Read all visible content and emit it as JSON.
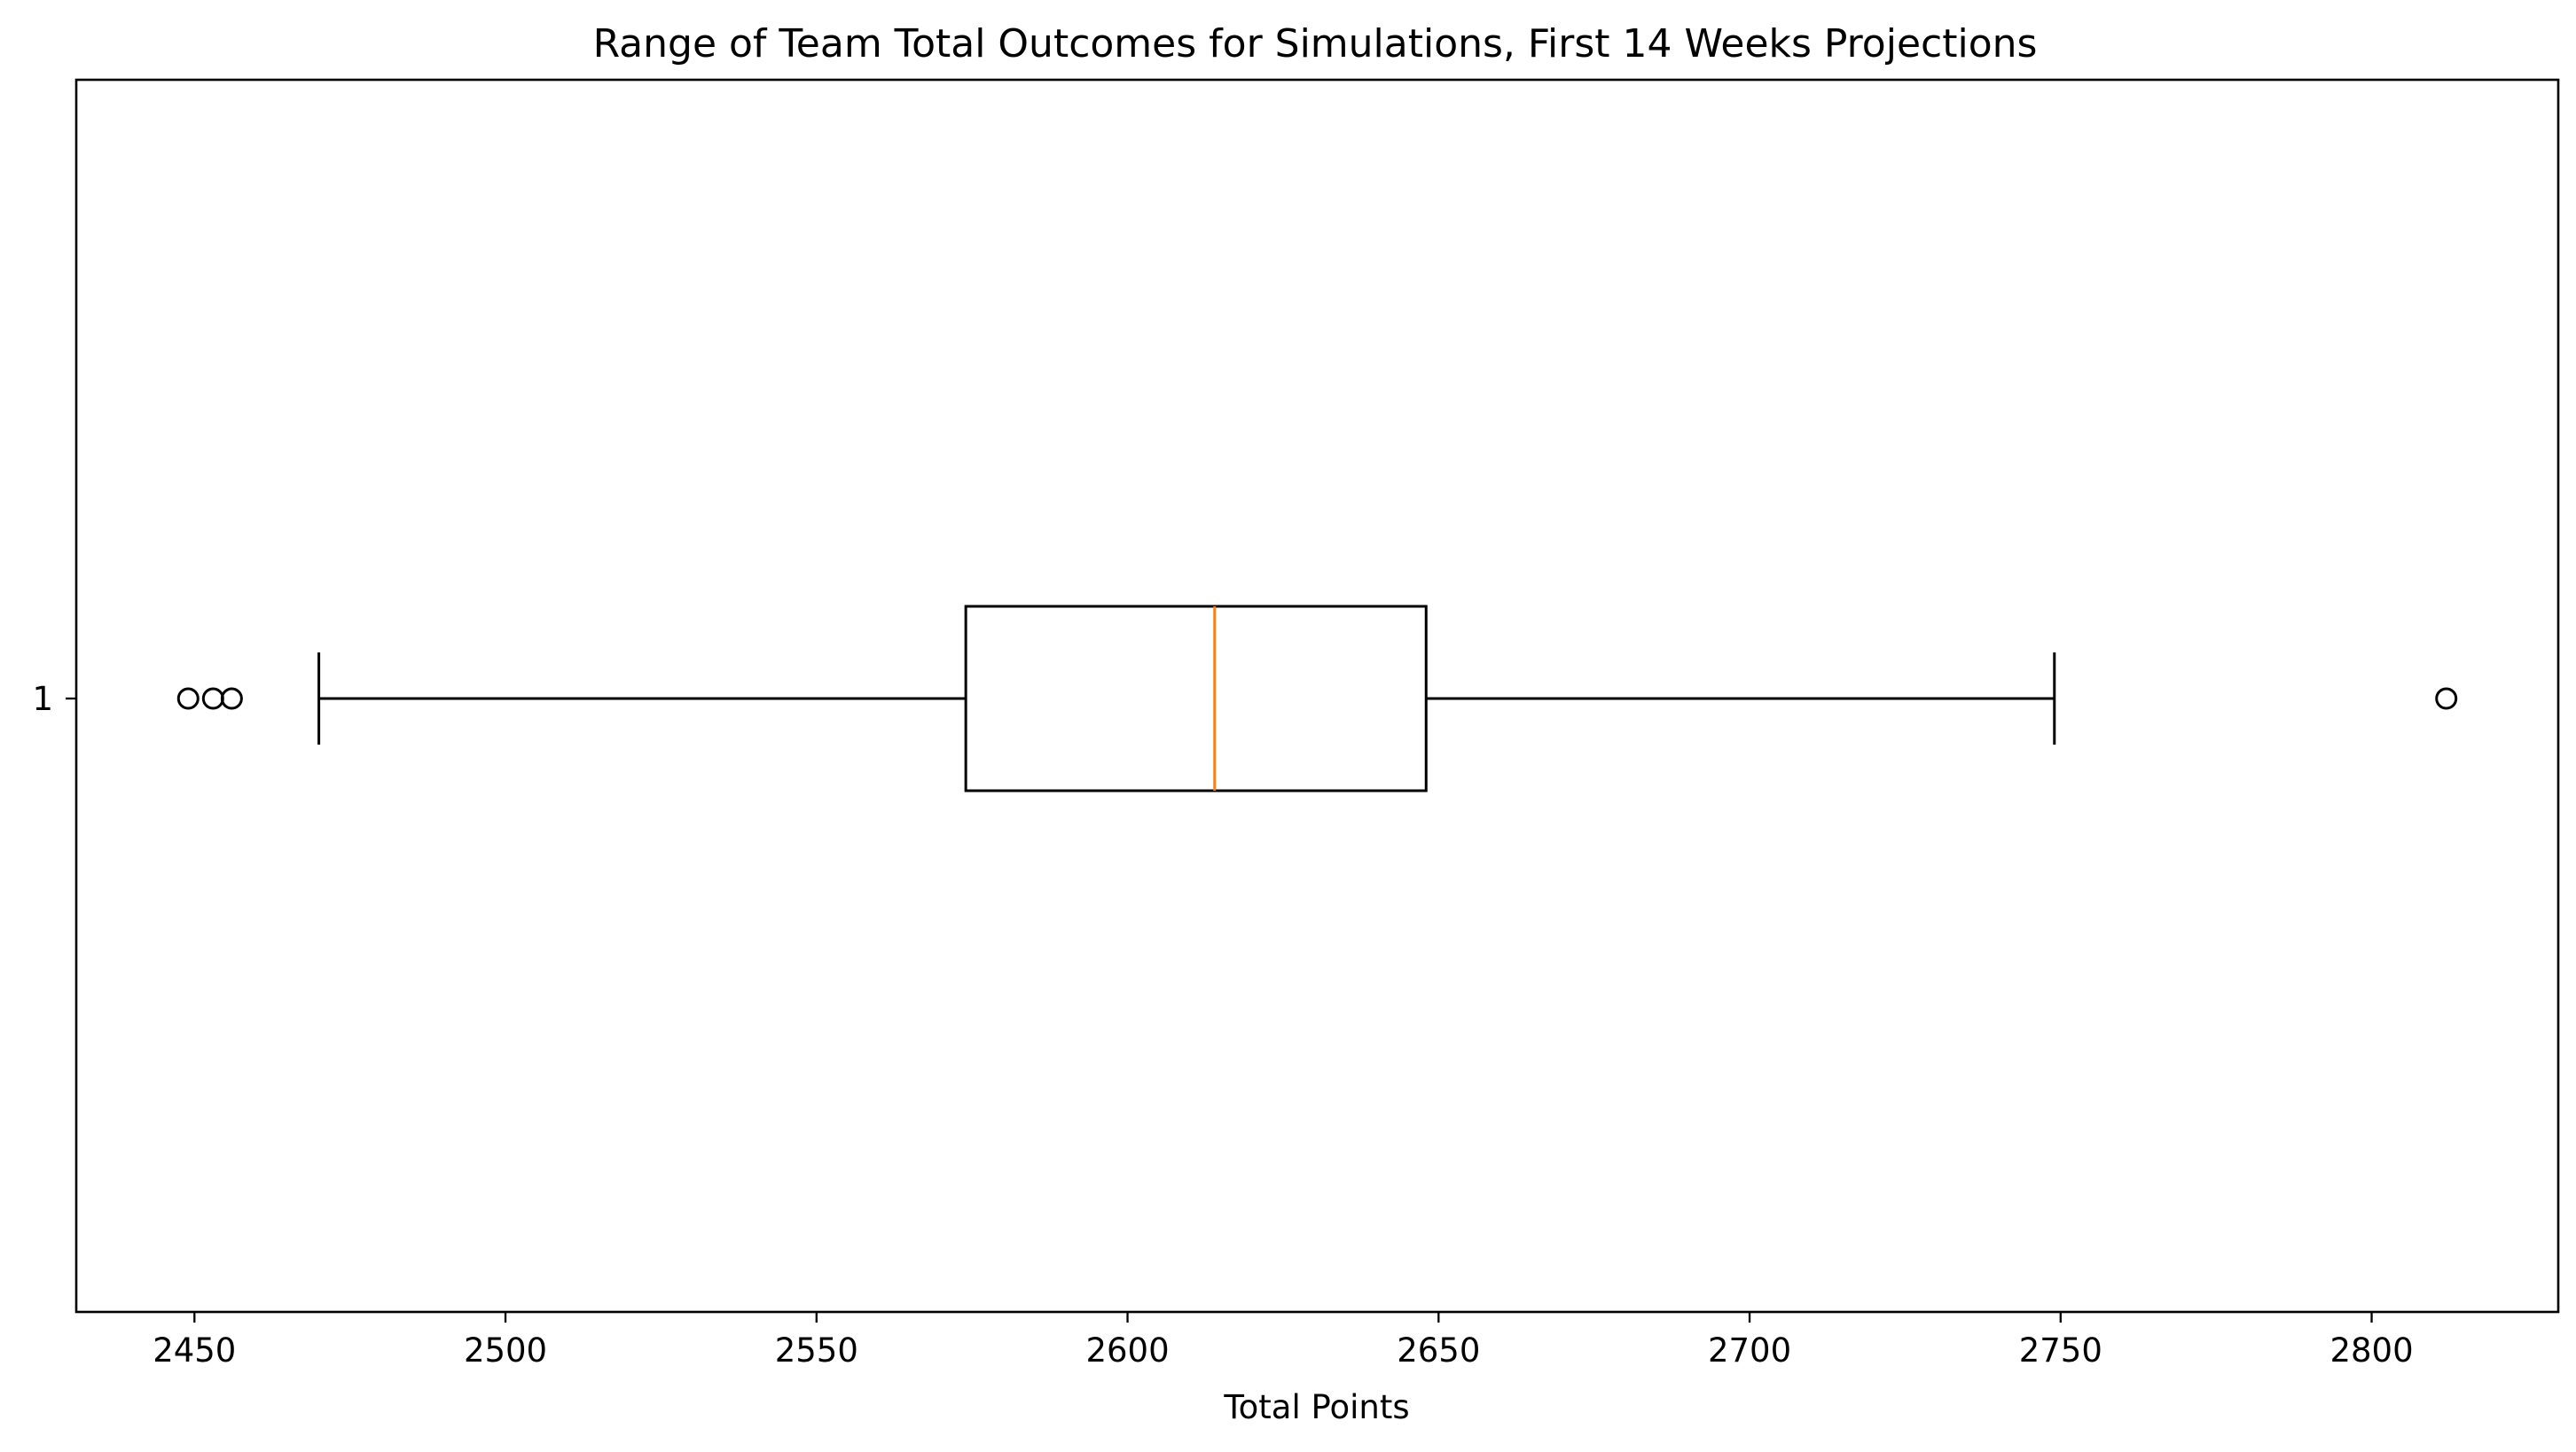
{
  "chart_data": {
    "type": "boxplot",
    "orientation": "horizontal",
    "title": "Range of Team Total Outcomes for Simulations, First 14 Weeks Projections",
    "xlabel": "Total Points",
    "ylabel": "",
    "xlim": [
      2431,
      2830
    ],
    "xticks": [
      2450,
      2500,
      2550,
      2600,
      2650,
      2700,
      2750,
      2800
    ],
    "xtick_labels": [
      "2450",
      "2500",
      "2550",
      "2600",
      "2650",
      "2700",
      "2750",
      "2800"
    ],
    "yticks": [
      "1"
    ],
    "grid": false,
    "series": [
      {
        "category": "1",
        "whisker_low": 2470,
        "q1": 2574,
        "median": 2614,
        "q3": 2648,
        "whisker_high": 2749,
        "outliers": [
          2449,
          2453,
          2456,
          2812
        ]
      }
    ],
    "colors": {
      "box": "#000000",
      "median": "#ff7f0e",
      "outlier": "#000000"
    }
  }
}
